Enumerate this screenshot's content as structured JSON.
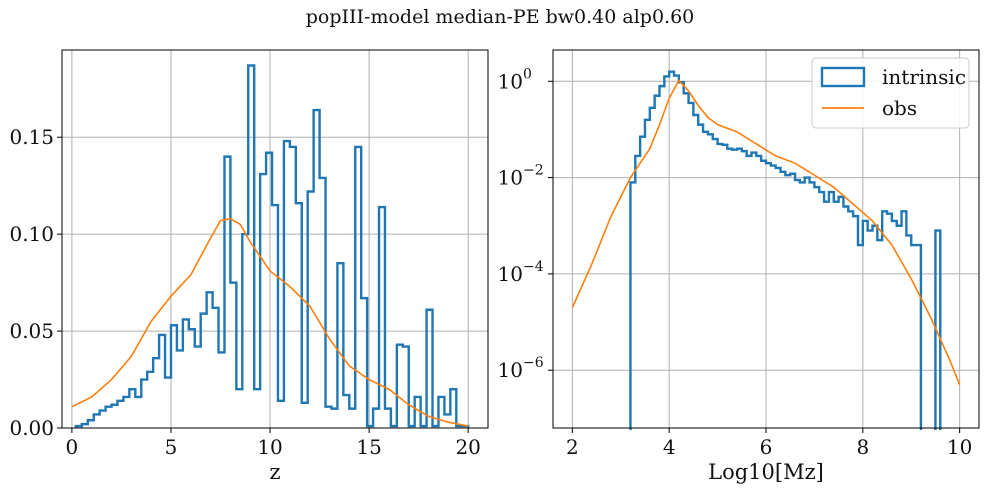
{
  "figure": {
    "title": "popIII-model median-PE bw0.40 alp0.60"
  },
  "colors": {
    "intrinsic": "#1f77b4",
    "obs": "#ff7f0e",
    "grid": "#b0b0b0",
    "axis": "#000000"
  },
  "chart_data": [
    {
      "type": "histogram",
      "xlabel": "z",
      "ylabel": "",
      "xlim": [
        -0.5,
        21.0
      ],
      "ylim": [
        0,
        0.195
      ],
      "grid": true,
      "yscale": "linear",
      "xticks": [
        0,
        5,
        10,
        15,
        20
      ],
      "xtick_labels": [
        "0",
        "5",
        "10",
        "15",
        "20"
      ],
      "yticks": [
        0.0,
        0.05,
        0.1,
        0.15
      ],
      "ytick_labels": [
        "0.00",
        "0.05",
        "0.10",
        "0.15"
      ],
      "series": [
        {
          "kind": "step",
          "bin_start": 0.2,
          "bin_width": 0.3,
          "values": [
            0.001,
            0.002,
            0.004,
            0.007,
            0.009,
            0.011,
            0.012,
            0.014,
            0.016,
            0.02,
            0.016,
            0.025,
            0.029,
            0.036,
            0.048,
            0.026,
            0.053,
            0.04,
            0.056,
            0.051,
            0.042,
            0.059,
            0.07,
            0.062,
            0.039,
            0.14,
            0.075,
            0.02,
            0.1,
            0.187,
            0.02,
            0.131,
            0.142,
            0.115,
            0.014,
            0.148,
            0.145,
            0.116,
            0.013,
            0.122,
            0.164,
            0.129,
            0.011,
            0.01,
            0.085,
            0.017,
            0.01,
            0.145,
            0.067,
            0.001,
            0.01,
            0.114,
            0.01,
            0.001,
            0.043,
            0.042,
            0.001,
            0.016,
            0.001,
            0.061,
            0.001,
            0.016,
            0.007,
            0.02,
            0.001,
            0.001
          ]
        },
        {
          "kind": "line",
          "x": [
            0,
            1,
            2,
            3,
            4,
            5,
            6,
            7,
            7.5,
            8,
            8.5,
            9,
            10,
            11,
            12,
            13,
            14,
            15,
            16,
            17,
            18,
            19,
            20
          ],
          "y": [
            0.011,
            0.016,
            0.025,
            0.037,
            0.055,
            0.068,
            0.079,
            0.098,
            0.107,
            0.108,
            0.105,
            0.096,
            0.081,
            0.073,
            0.063,
            0.046,
            0.032,
            0.025,
            0.02,
            0.012,
            0.006,
            0.003,
            0.001
          ]
        }
      ]
    },
    {
      "type": "histogram",
      "xlabel": "Log10[Mz]",
      "ylabel": "",
      "xlim": [
        1.6,
        10.4
      ],
      "ylim_log10": [
        -7.2,
        0.65
      ],
      "grid": true,
      "yscale": "log",
      "xticks": [
        2,
        4,
        6,
        8,
        10
      ],
      "xtick_labels": [
        "2",
        "4",
        "6",
        "8",
        "10"
      ],
      "ytick_exponents": [
        0,
        -2,
        -4,
        -6
      ],
      "ytick_labels": [
        "10",
        "10",
        "10",
        "10"
      ],
      "ytick_superscripts": [
        "0",
        "−2",
        "−4",
        "−6"
      ],
      "legend": {
        "position": "top-right",
        "entries": [
          {
            "label": "intrinsic"
          },
          {
            "label": "obs"
          }
        ]
      },
      "series": [
        {
          "name": "intrinsic",
          "kind": "step-log",
          "edges_log10": [
            [
              3.2,
              3.3,
              -2.1
            ],
            [
              3.3,
              3.4,
              -1.55
            ],
            [
              3.4,
              3.5,
              -1.15
            ],
            [
              3.5,
              3.6,
              -0.8
            ],
            [
              3.6,
              3.7,
              -0.55
            ],
            [
              3.7,
              3.8,
              -0.3
            ],
            [
              3.8,
              3.9,
              -0.1
            ],
            [
              3.9,
              4.0,
              0.1
            ],
            [
              4.0,
              4.1,
              0.2
            ],
            [
              4.1,
              4.2,
              0.12
            ],
            [
              4.2,
              4.3,
              -0.02
            ],
            [
              4.3,
              4.4,
              -0.25
            ],
            [
              4.4,
              4.5,
              -0.45
            ],
            [
              4.5,
              4.6,
              -0.7
            ],
            [
              4.6,
              4.7,
              -0.9
            ],
            [
              4.7,
              4.8,
              -1.05
            ],
            [
              4.8,
              4.9,
              -1.1
            ],
            [
              4.9,
              5.0,
              -1.2
            ],
            [
              5.0,
              5.1,
              -1.3
            ],
            [
              5.1,
              5.2,
              -1.32
            ],
            [
              5.2,
              5.3,
              -1.4
            ],
            [
              5.3,
              5.4,
              -1.42
            ],
            [
              5.4,
              5.5,
              -1.4
            ],
            [
              5.5,
              5.6,
              -1.45
            ],
            [
              5.6,
              5.7,
              -1.55
            ],
            [
              5.7,
              5.8,
              -1.48
            ],
            [
              5.8,
              5.9,
              -1.55
            ],
            [
              5.9,
              6.0,
              -1.65
            ],
            [
              6.0,
              6.1,
              -1.7
            ],
            [
              6.1,
              6.2,
              -1.75
            ],
            [
              6.2,
              6.3,
              -1.8
            ],
            [
              6.3,
              6.4,
              -1.88
            ],
            [
              6.4,
              6.5,
              -1.95
            ],
            [
              6.5,
              6.6,
              -1.92
            ],
            [
              6.6,
              6.7,
              -2.05
            ],
            [
              6.7,
              6.8,
              -2.1
            ],
            [
              6.8,
              6.9,
              -2.0
            ],
            [
              6.9,
              7.0,
              -2.1
            ],
            [
              7.0,
              7.1,
              -2.2
            ],
            [
              7.1,
              7.2,
              -2.3
            ],
            [
              7.2,
              7.3,
              -2.5
            ],
            [
              7.3,
              7.4,
              -2.3
            ],
            [
              7.4,
              7.5,
              -2.5
            ],
            [
              7.5,
              7.6,
              -2.4
            ],
            [
              7.6,
              7.7,
              -2.6
            ],
            [
              7.7,
              7.8,
              -2.7
            ],
            [
              7.8,
              7.9,
              -2.8
            ],
            [
              7.9,
              8.0,
              -3.4
            ],
            [
              8.0,
              8.1,
              -2.9
            ],
            [
              8.1,
              8.2,
              -3.1
            ],
            [
              8.2,
              8.3,
              -3.0
            ],
            [
              8.3,
              8.4,
              -3.3
            ],
            [
              8.4,
              8.5,
              -2.7
            ],
            [
              8.5,
              8.6,
              -2.75
            ],
            [
              8.6,
              8.7,
              -2.9
            ],
            [
              8.7,
              8.8,
              -3.0
            ],
            [
              8.8,
              8.9,
              -2.7
            ],
            [
              8.9,
              9.0,
              -3.2
            ],
            [
              9.0,
              9.1,
              -3.4
            ],
            [
              9.1,
              9.2,
              -3.4
            ],
            [
              9.5,
              9.6,
              -3.1
            ]
          ],
          "drop_edges_x": [
            3.2,
            7.25,
            9.0,
            9.2,
            9.5,
            9.6
          ]
        },
        {
          "name": "obs",
          "kind": "line-log",
          "x": [
            2.0,
            2.4,
            2.8,
            3.2,
            3.6,
            3.8,
            4.0,
            4.2,
            4.4,
            4.6,
            4.8,
            5.0,
            5.4,
            5.8,
            6.2,
            6.6,
            7.0,
            7.4,
            7.8,
            8.2,
            8.6,
            9.0,
            9.4,
            9.8,
            10.0
          ],
          "y_log10": [
            -4.7,
            -3.8,
            -2.8,
            -2.0,
            -1.4,
            -0.9,
            -0.35,
            0.02,
            -0.2,
            -0.5,
            -0.75,
            -0.9,
            -1.05,
            -1.3,
            -1.55,
            -1.7,
            -1.95,
            -2.2,
            -2.55,
            -2.9,
            -3.4,
            -4.1,
            -4.9,
            -5.8,
            -6.3
          ]
        }
      ]
    }
  ]
}
